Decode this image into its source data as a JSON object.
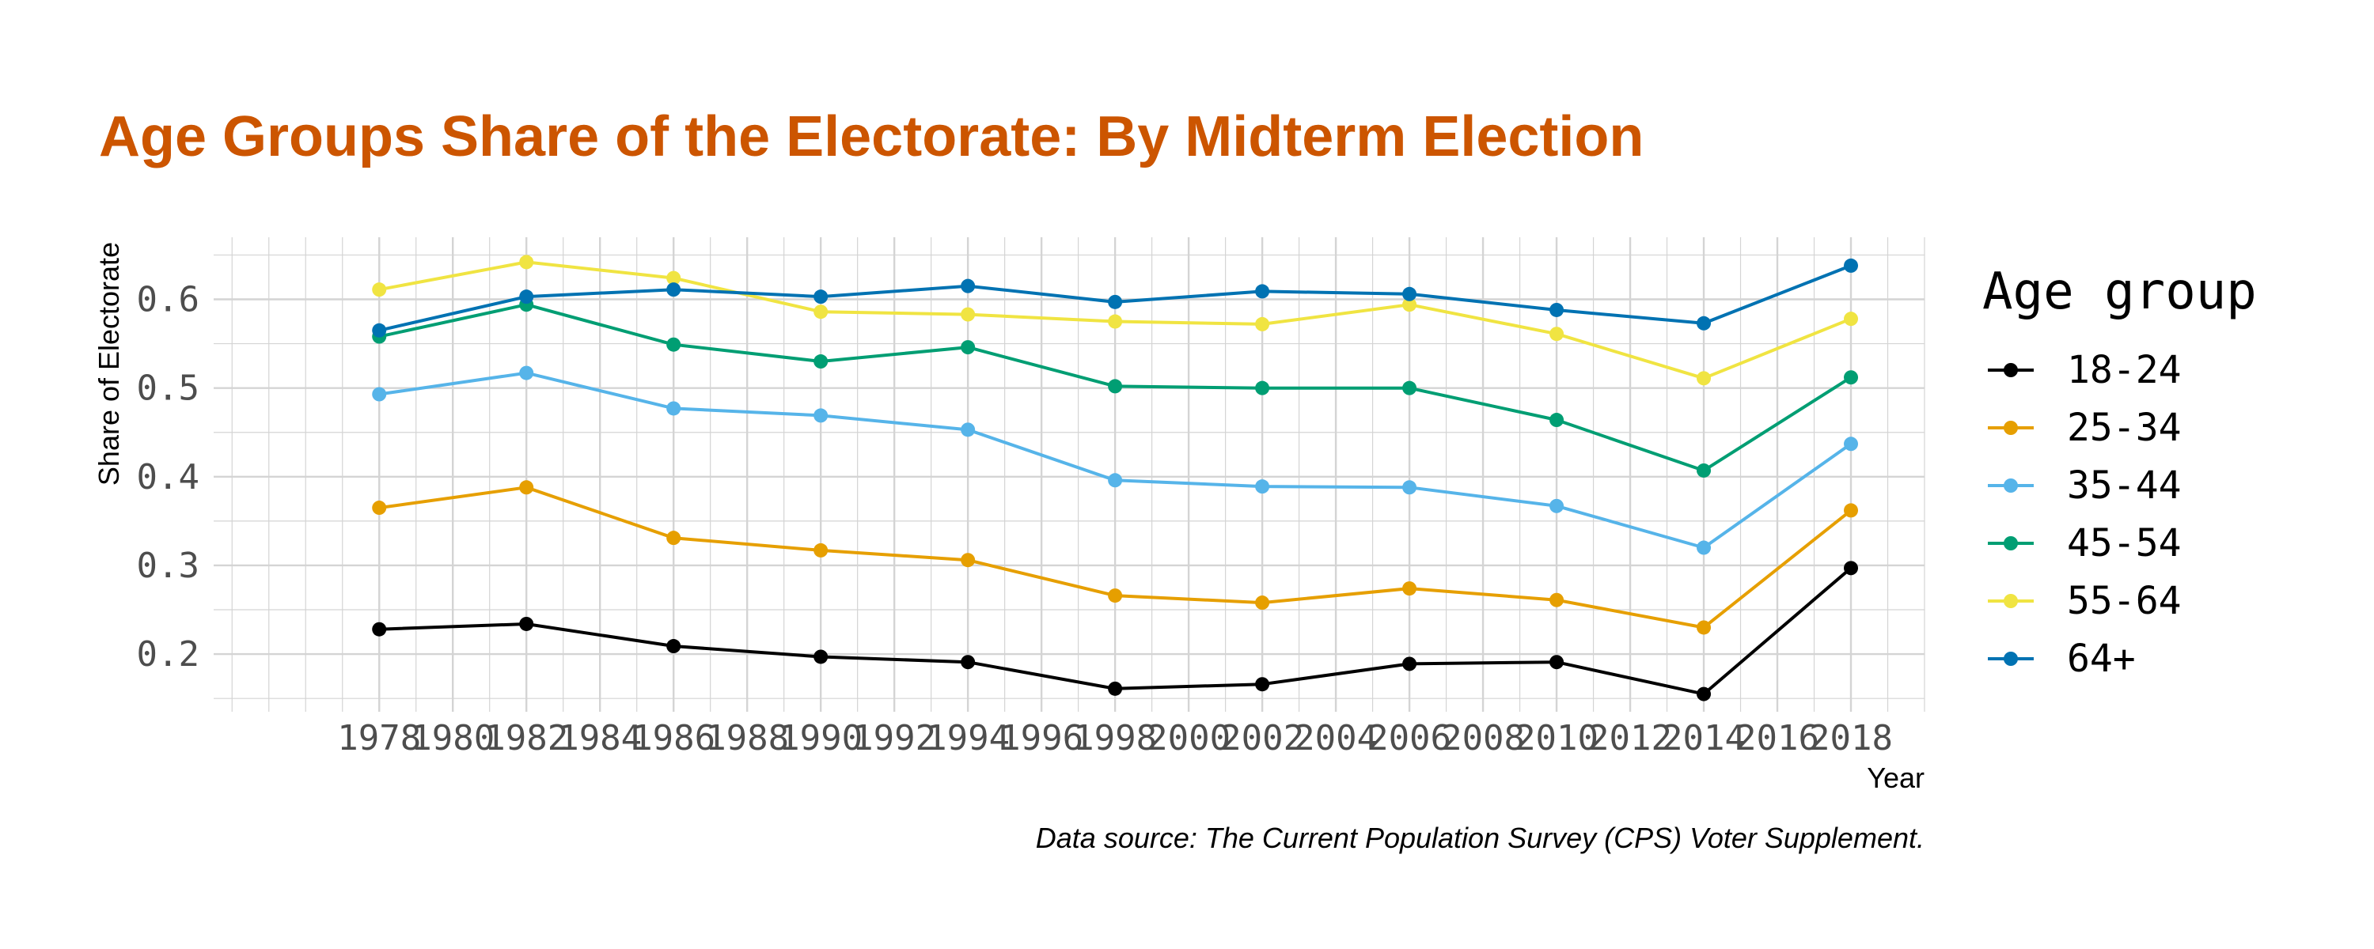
{
  "chart_data": {
    "type": "line",
    "title": "Age Groups Share of the Electorate: By Midterm Election",
    "xlabel": "Year",
    "ylabel": "Share of Electorate",
    "caption": "Data source: The Current Population Survey (CPS) Voter Supplement.",
    "legend_title": "Age group",
    "legend_position": "right",
    "grid": true,
    "xlim": [
      1973.5,
      2020
    ],
    "ylim": [
      0.135,
      0.67
    ],
    "x_ticks": [
      1978,
      1980,
      1982,
      1984,
      1986,
      1988,
      1990,
      1992,
      1994,
      1996,
      1998,
      2000,
      2002,
      2004,
      2006,
      2008,
      2010,
      2012,
      2014,
      2016,
      2018
    ],
    "y_ticks": [
      0.2,
      0.3,
      0.4,
      0.5,
      0.6
    ],
    "y_tick_labels": [
      "0.2",
      "0.3",
      "0.4",
      "0.5",
      "0.6"
    ],
    "x": [
      1978,
      1982,
      1986,
      1990,
      1994,
      1998,
      2002,
      2006,
      2010,
      2014,
      2018
    ],
    "series": [
      {
        "name": "18-24",
        "color": "#000000",
        "values": [
          0.228,
          0.234,
          0.209,
          0.197,
          0.191,
          0.161,
          0.166,
          0.189,
          0.191,
          0.155,
          0.297
        ]
      },
      {
        "name": "25-34",
        "color": "#E69F00",
        "values": [
          0.365,
          0.388,
          0.331,
          0.317,
          0.306,
          0.266,
          0.258,
          0.274,
          0.261,
          0.23,
          0.362
        ]
      },
      {
        "name": "35-44",
        "color": "#56B4E9",
        "values": [
          0.493,
          0.517,
          0.477,
          0.469,
          0.453,
          0.396,
          0.389,
          0.388,
          0.367,
          0.32,
          0.437
        ]
      },
      {
        "name": "45-54",
        "color": "#009E73",
        "values": [
          0.558,
          0.594,
          0.549,
          0.53,
          0.546,
          0.502,
          0.5,
          0.5,
          0.464,
          0.407,
          0.512
        ]
      },
      {
        "name": "55-64",
        "color": "#F0E442",
        "values": [
          0.611,
          0.642,
          0.624,
          0.586,
          0.583,
          0.575,
          0.572,
          0.594,
          0.561,
          0.511,
          0.578
        ]
      },
      {
        "name": "64+",
        "color": "#0072B2",
        "values": [
          0.565,
          0.603,
          0.611,
          0.603,
          0.615,
          0.597,
          0.609,
          0.606,
          0.588,
          0.573,
          0.638
        ]
      }
    ],
    "colors": {
      "title": "#CC5500",
      "grid": "#D4D4D4",
      "tick_text": "#4d4d4d"
    }
  }
}
